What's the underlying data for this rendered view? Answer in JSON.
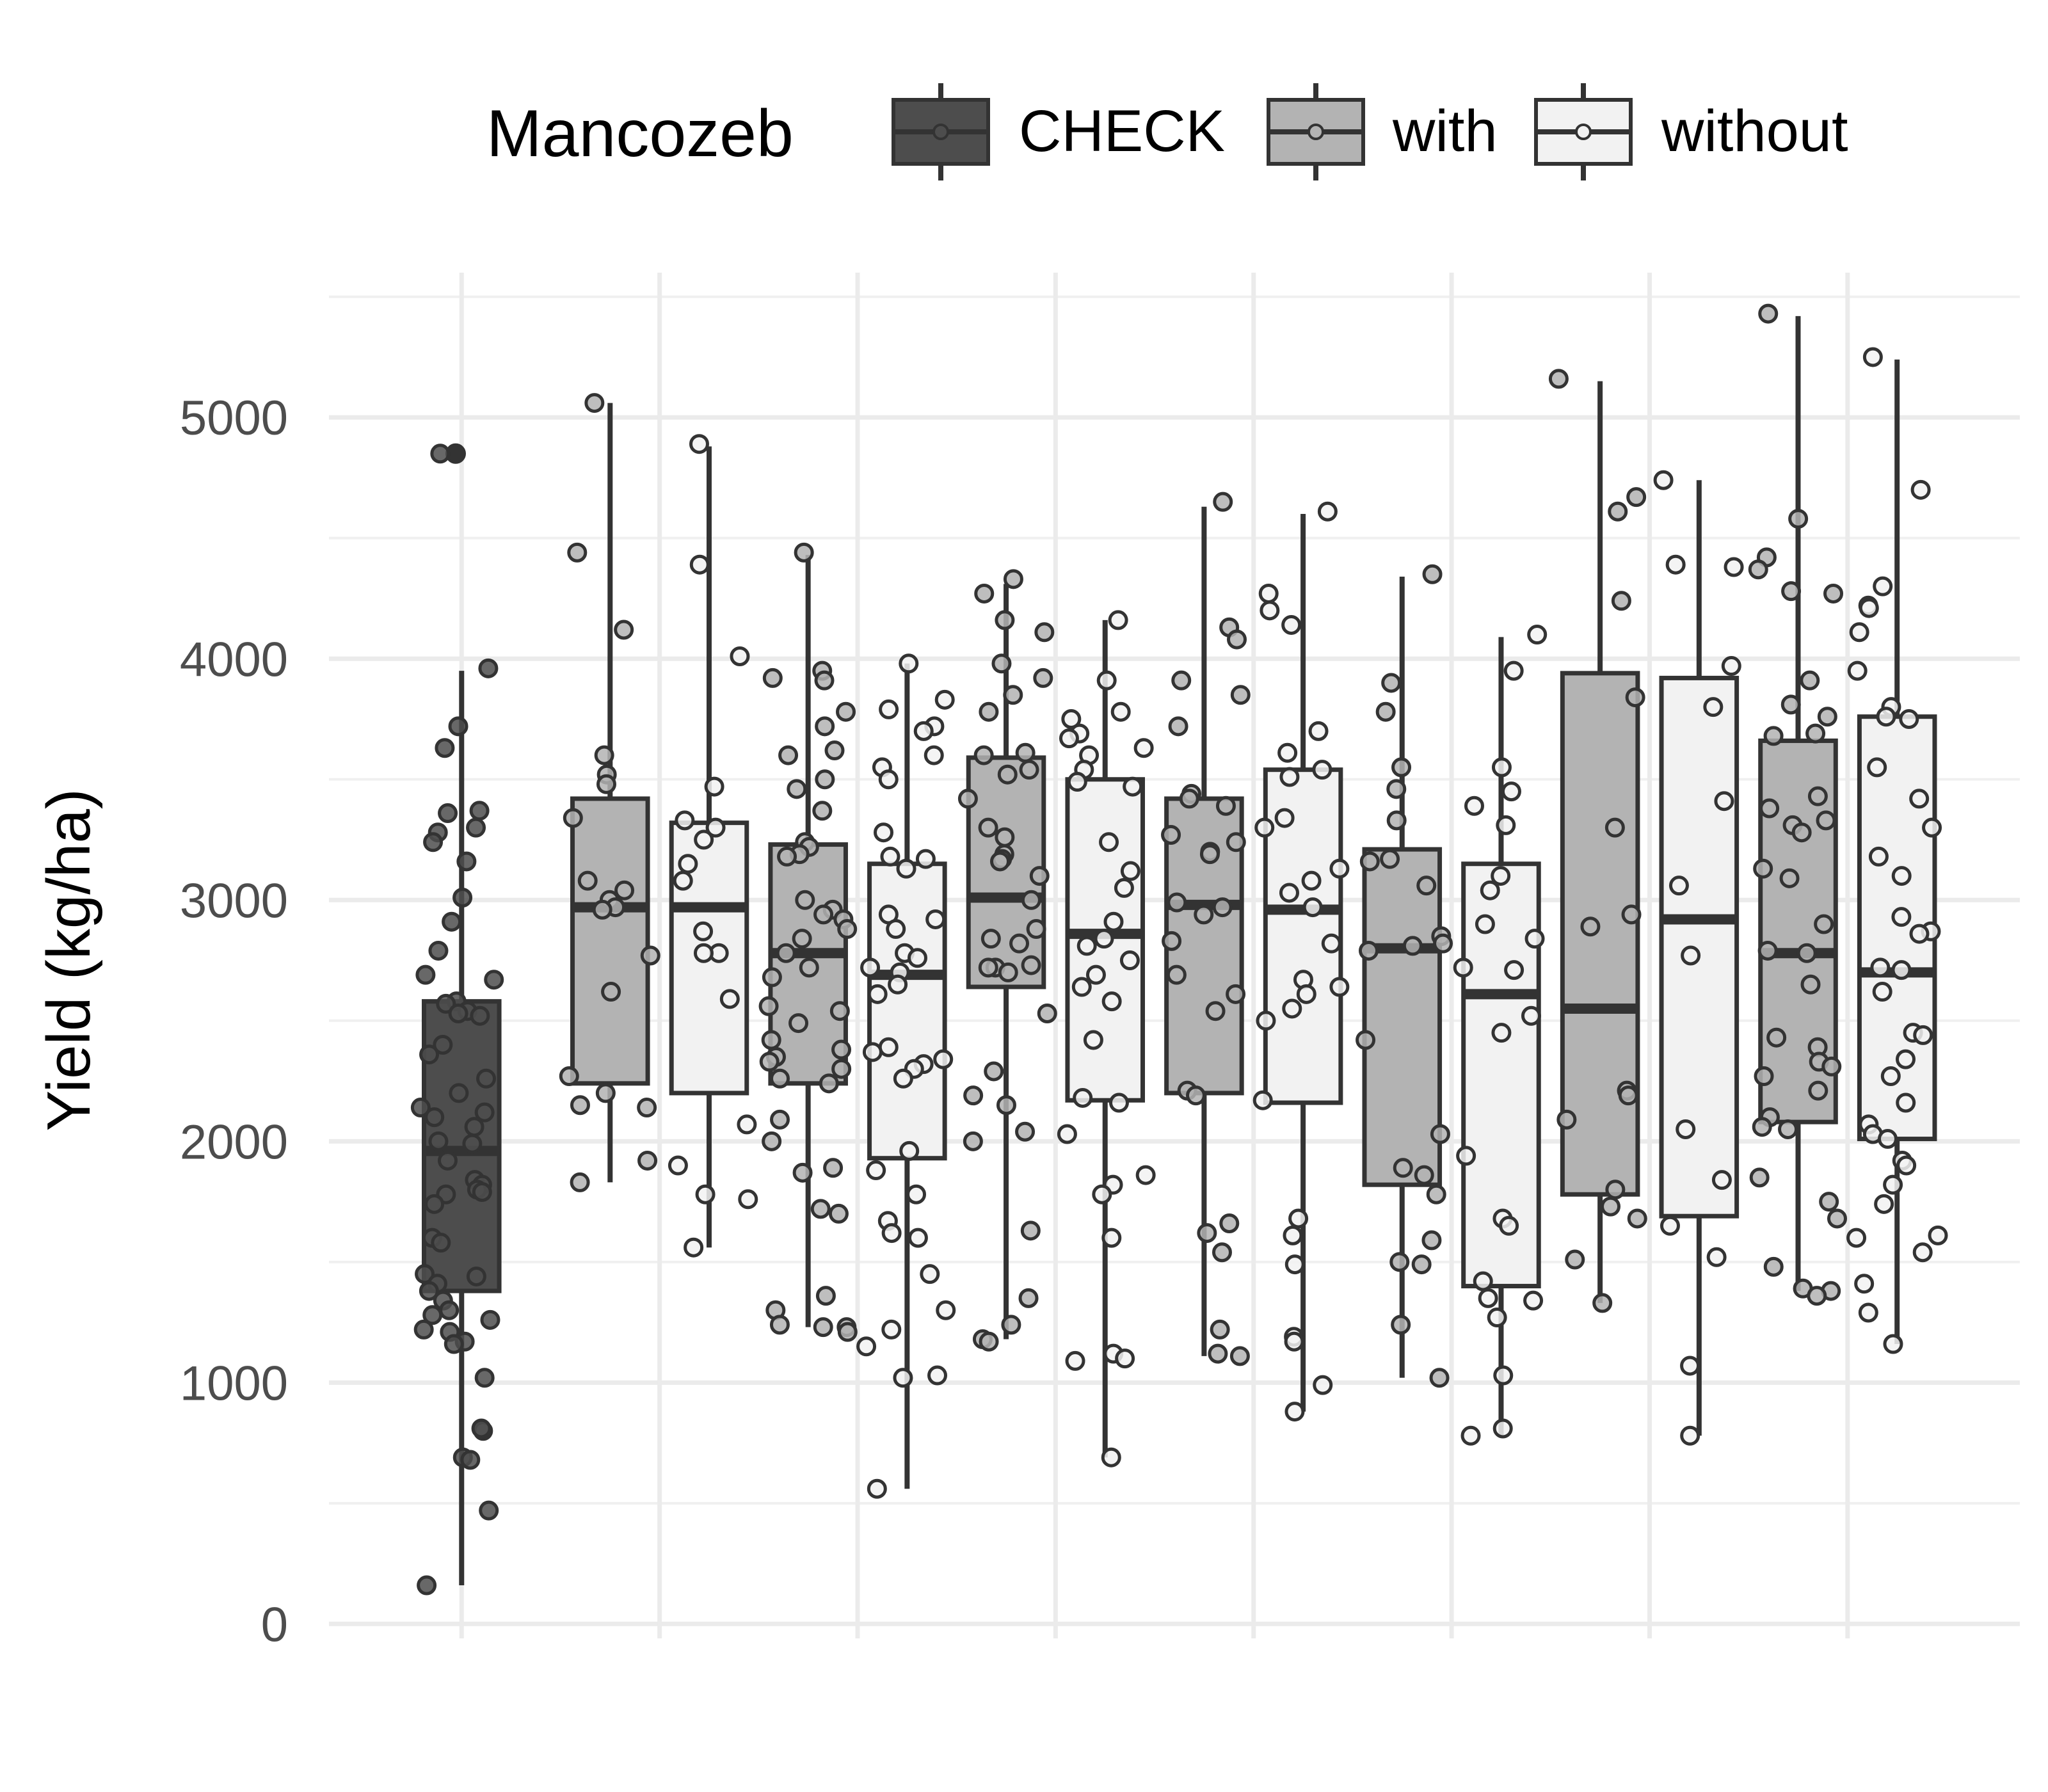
{
  "chart_data": {
    "type": "boxplot",
    "ylabel": "Yield (kg/ha)",
    "xlabel": "",
    "ylim": [
      -60,
      5600
    ],
    "y_ticks": [
      0,
      1000,
      2000,
      3000,
      4000,
      5000
    ],
    "grid": true,
    "legend": {
      "title": "Mancozeb",
      "position": "top",
      "entries": [
        {
          "label": "CHECK",
          "fill": "#4d4d4d"
        },
        {
          "label": "with",
          "fill": "#b3b3b3"
        },
        {
          "label": "without",
          "fill": "#f2f2f2"
        }
      ]
    },
    "groups": [
      {
        "mancozeb": "CHECK",
        "fill": "#4d4d4d",
        "x": 1,
        "min": 160,
        "q1": 1380,
        "median": 1960,
        "q3": 2580,
        "max": 3950,
        "outliers": [
          4850
        ],
        "points": [
          4850,
          3960,
          3720,
          3630,
          3370,
          3360,
          3300,
          3280,
          3240,
          3160,
          3010,
          2910,
          2790,
          2690,
          2670,
          2580,
          2570,
          2540,
          2530,
          2520,
          2400,
          2360,
          2260,
          2200,
          2140,
          2120,
          2100,
          2060,
          2000,
          1990,
          1920,
          1840,
          1820,
          1800,
          1790,
          1780,
          1740,
          1600,
          1580,
          1450,
          1440,
          1410,
          1380,
          1340,
          1300,
          1280,
          1260,
          1220,
          1210,
          1170,
          1160,
          1020,
          800,
          810,
          690,
          680,
          470,
          160
        ]
      },
      {
        "mancozeb": "with",
        "fill": "#b3b3b3",
        "x": 1.75,
        "min": 1830,
        "q1": 2240,
        "median": 2970,
        "q3": 3420,
        "max": 5060,
        "outliers": [],
        "points": [
          5060,
          4440,
          4120,
          3600,
          3520,
          3480,
          3340,
          3080,
          3040,
          3000,
          2970,
          2960,
          2770,
          2620,
          2270,
          2200,
          2150,
          2140,
          1920,
          1830
        ]
      },
      {
        "mancozeb": "without",
        "fill": "#f2f2f2",
        "x": 2.25,
        "min": 1560,
        "q1": 2200,
        "median": 2970,
        "q3": 3320,
        "max": 4880,
        "outliers": [],
        "points": [
          4890,
          4390,
          4010,
          3470,
          3330,
          3300,
          3250,
          3150,
          3080,
          2870,
          2780,
          2780,
          2590,
          2070,
          1900,
          1780,
          1760,
          1560
        ]
      },
      {
        "mancozeb": "with",
        "fill": "#b3b3b3",
        "x": 2.75,
        "min": 1230,
        "q1": 2240,
        "median": 2780,
        "q3": 3230,
        "max": 4430,
        "outliers": [],
        "points": [
          4440,
          3950,
          3920,
          3910,
          3780,
          3720,
          3620,
          3600,
          3500,
          3460,
          3370,
          3240,
          3220,
          3190,
          3180,
          3000,
          2960,
          2940,
          2920,
          2880,
          2840,
          2780,
          2720,
          2680,
          2560,
          2540,
          2490,
          2420,
          2380,
          2350,
          2330,
          2300,
          2260,
          2240,
          2090,
          2000,
          1890,
          1870,
          1720,
          1700,
          1360,
          1300,
          1240,
          1230,
          1230,
          1210
        ]
      },
      {
        "mancozeb": "without",
        "fill": "#f2f2f2",
        "x": 3.25,
        "min": 560,
        "q1": 1930,
        "median": 2690,
        "q3": 3150,
        "max": 3980,
        "outliers": [],
        "points": [
          3980,
          3830,
          3790,
          3720,
          3700,
          3600,
          3550,
          3500,
          3280,
          3180,
          3170,
          3130,
          2940,
          2920,
          2880,
          2780,
          2760,
          2720,
          2700,
          2650,
          2610,
          2390,
          2370,
          2340,
          2320,
          2300,
          2260,
          1960,
          1880,
          1780,
          1670,
          1620,
          1600,
          1450,
          1300,
          1220,
          1150,
          1030,
          1020,
          560
        ]
      },
      {
        "mancozeb": "with",
        "fill": "#b3b3b3",
        "x": 3.75,
        "min": 1180,
        "q1": 2640,
        "median": 3010,
        "q3": 3590,
        "max": 4310,
        "outliers": [],
        "points": [
          4330,
          4270,
          4160,
          4110,
          3980,
          3920,
          3850,
          3780,
          3610,
          3600,
          3540,
          3520,
          3420,
          3300,
          3260,
          3190,
          3170,
          3160,
          3100,
          3000,
          2880,
          2840,
          2820,
          2730,
          2720,
          2720,
          2700,
          2530,
          2290,
          2190,
          2150,
          2040,
          2000,
          1630,
          1350,
          1240,
          1180,
          1170
        ]
      },
      {
        "mancozeb": "without",
        "fill": "#f2f2f2",
        "x": 4.25,
        "min": 690,
        "q1": 2170,
        "median": 2860,
        "q3": 3500,
        "max": 4160,
        "outliers": [],
        "points": [
          4160,
          3910,
          3780,
          3750,
          3690,
          3670,
          3630,
          3600,
          3540,
          3490,
          3470,
          3240,
          3120,
          3050,
          2910,
          2840,
          2810,
          2750,
          2690,
          2640,
          2580,
          2420,
          2180,
          2160,
          2030,
          1860,
          1820,
          1780,
          1600,
          1120,
          1100,
          1090,
          690
        ]
      },
      {
        "mancozeb": "with",
        "fill": "#b3b3b3",
        "x": 4.75,
        "min": 1110,
        "q1": 2200,
        "median": 2980,
        "q3": 3420,
        "max": 4630,
        "outliers": [],
        "points": [
          4650,
          4130,
          4080,
          3910,
          3850,
          3720,
          3440,
          3420,
          3390,
          3270,
          3240,
          3200,
          3190,
          2990,
          2970,
          2940,
          2830,
          2690,
          2610,
          2540,
          2210,
          2190,
          1660,
          1620,
          1540,
          1220,
          1120,
          1110
        ]
      },
      {
        "mancozeb": "without",
        "fill": "#f2f2f2",
        "x": 5.25,
        "min": 880,
        "q1": 2160,
        "median": 2960,
        "q3": 3540,
        "max": 4600,
        "outliers": [],
        "points": [
          4610,
          4270,
          4200,
          4140,
          3700,
          3610,
          3540,
          3510,
          3340,
          3300,
          3130,
          3080,
          3030,
          2970,
          2820,
          2670,
          2640,
          2610,
          2550,
          2500,
          2170,
          1680,
          1610,
          1490,
          1190,
          1170,
          990,
          880
        ]
      },
      {
        "mancozeb": "with",
        "fill": "#b3b3b3",
        "x": 5.75,
        "min": 1020,
        "q1": 1820,
        "median": 2800,
        "q3": 3210,
        "max": 4340,
        "outliers": [],
        "points": [
          4350,
          3900,
          3780,
          3550,
          3460,
          3330,
          3160,
          3170,
          3060,
          2850,
          2820,
          2810,
          2790,
          2420,
          2030,
          1890,
          1860,
          1780,
          1590,
          1500,
          1490,
          1240,
          1020
        ]
      },
      {
        "mancozeb": "without",
        "fill": "#f2f2f2",
        "x": 6.25,
        "min": 780,
        "q1": 1400,
        "median": 2610,
        "q3": 3150,
        "max": 4090,
        "outliers": [],
        "points": [
          4100,
          3950,
          3550,
          3450,
          3390,
          3310,
          3100,
          3040,
          2900,
          2840,
          2720,
          2710,
          2520,
          2450,
          1940,
          1680,
          1650,
          1420,
          1350,
          1340,
          1270,
          1030,
          810,
          780
        ]
      },
      {
        "mancozeb": "with",
        "fill": "#b3b3b3",
        "x": 6.75,
        "min": 1330,
        "q1": 1780,
        "median": 2550,
        "q3": 3940,
        "max": 5150,
        "outliers": [],
        "points": [
          5160,
          4670,
          4610,
          4240,
          3840,
          3300,
          2940,
          2890,
          2210,
          2190,
          2090,
          1800,
          1730,
          1680,
          1510,
          1330
        ]
      },
      {
        "mancozeb": "without",
        "fill": "#f2f2f2",
        "x": 7.25,
        "min": 780,
        "q1": 1690,
        "median": 2920,
        "q3": 3920,
        "max": 4740,
        "outliers": [],
        "points": [
          4740,
          4390,
          4380,
          3970,
          3800,
          3410,
          3060,
          2770,
          2050,
          1840,
          1650,
          1520,
          1070,
          780
        ]
      },
      {
        "mancozeb": "with",
        "fill": "#b3b3b3",
        "x": 7.75,
        "min": 1380,
        "q1": 2080,
        "median": 2780,
        "q3": 3660,
        "max": 5420,
        "outliers": [],
        "points": [
          5430,
          4580,
          4420,
          4370,
          4280,
          4270,
          3910,
          3810,
          3760,
          3690,
          3680,
          3430,
          3380,
          3330,
          3310,
          3280,
          3130,
          3090,
          2900,
          2790,
          2780,
          2650,
          2430,
          2390,
          2330,
          2310,
          2270,
          2210,
          2100,
          2060,
          2050,
          1850,
          1750,
          1680,
          1480,
          1390,
          1380,
          1360
        ]
      },
      {
        "mancozeb": "without",
        "fill": "#f2f2f2",
        "x": 8.25,
        "min": 1160,
        "q1": 2010,
        "median": 2700,
        "q3": 3760,
        "max": 5240,
        "outliers": [],
        "points": [
          5250,
          4700,
          4300,
          4220,
          4210,
          4110,
          3950,
          3800,
          3760,
          3750,
          3550,
          3420,
          3300,
          3180,
          3100,
          2930,
          2870,
          2860,
          2720,
          2710,
          2620,
          2450,
          2440,
          2340,
          2270,
          2160,
          2070,
          2030,
          2010,
          1920,
          1900,
          1820,
          1740,
          1610,
          1600,
          1540,
          1410,
          1290,
          1160
        ]
      }
    ]
  }
}
